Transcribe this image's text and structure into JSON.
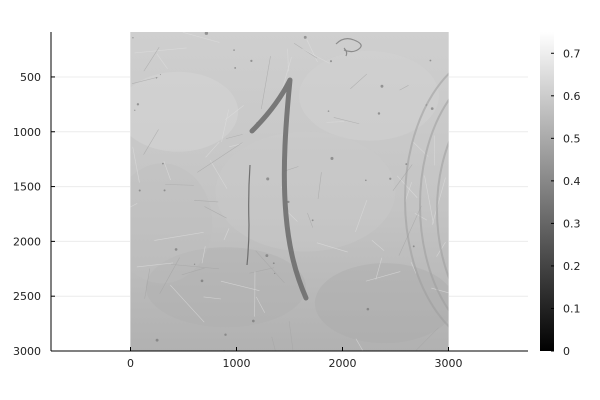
{
  "chart_data": {
    "type": "heatmap",
    "title": "",
    "xlabel": "",
    "ylabel": "",
    "image_content": "grayscale photograph of a scratched gray surface with a hand-drawn numeral 1",
    "xlim": [
      -750,
      3750
    ],
    "ylim": [
      3000,
      90
    ],
    "y_axis_inverted": true,
    "image_extent": {
      "x": [
        0,
        3000
      ],
      "y": [
        90,
        3000
      ]
    },
    "xticks": [
      0,
      1000,
      2000,
      3000
    ],
    "xtick_labels": [
      "0",
      "1000",
      "2000",
      "3000"
    ],
    "yticks": [
      500,
      1000,
      1500,
      2000,
      2500,
      3000
    ],
    "ytick_labels": [
      "500",
      "1000",
      "1500",
      "2000",
      "2500",
      "3000"
    ],
    "grid": true,
    "colorbar": {
      "colormap": "grays",
      "range": [
        0,
        0.75
      ],
      "ticks": [
        0,
        0.1,
        0.2,
        0.3,
        0.4,
        0.5,
        0.6,
        0.7
      ],
      "tick_labels": [
        "0",
        "0.1",
        "0.2",
        "0.3",
        "0.4",
        "0.5",
        "0.6",
        "0.7"
      ]
    },
    "colors": {
      "image_light": "#c9c9c9",
      "image_mid": "#b3b3b3",
      "stroke": "#6a6a6a",
      "grid": "#ececec",
      "axis": "#000000"
    }
  }
}
